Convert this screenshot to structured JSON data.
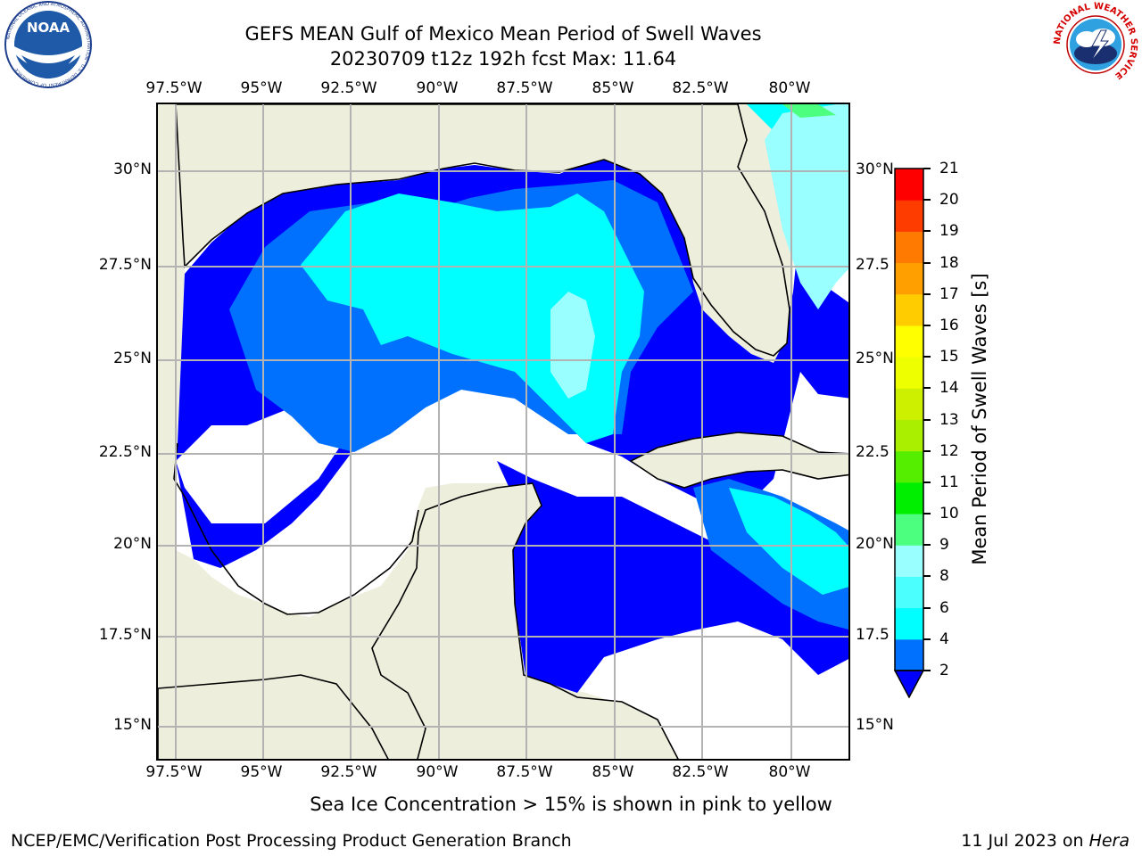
{
  "header": {
    "title_line1": "GEFS MEAN Gulf of Mexico Mean Period of Swell Waves",
    "title_line2": "20230709 t12z 192h fcst   Max: 11.64"
  },
  "logos": {
    "noaa_text": "NOAA",
    "noaa_ring_text": "NATIONAL OCEANIC AND ATMOSPHERIC ADMINISTRATION · U.S. DEPARTMENT OF COMMERCE",
    "nws_ring_text": "NATIONAL WEATHER SERVICE"
  },
  "map": {
    "lon_labels": [
      "97.5°W",
      "95°W",
      "92.5°W",
      "90°W",
      "87.5°W",
      "85°W",
      "82.5°W",
      "80°W"
    ],
    "lat_labels_left": [
      "30°N",
      "27.5°N",
      "25°N",
      "22.5°N",
      "20°N",
      "17.5°N",
      "15°N"
    ],
    "lat_labels_right": [
      "30°N",
      "27.5",
      "25°N",
      "22.5",
      "20°N",
      "17.5",
      "15°N"
    ],
    "colors": {
      "land": "#eeeedd",
      "no_data": "#ffffff",
      "coast": "#000000",
      "grid": "#b3b3b3"
    }
  },
  "colorbar": {
    "label": "Mean Period of Swell Waves [s]",
    "ticks": [
      "2",
      "4",
      "6",
      "8",
      "9",
      "10",
      "11",
      "12",
      "13",
      "14",
      "15",
      "16",
      "17",
      "18",
      "19",
      "20",
      "21"
    ],
    "colors": [
      "#0000ff",
      "#0070ff",
      "#00ffff",
      "#4cffff",
      "#99ffff",
      "#4cff7f",
      "#00ee00",
      "#55ee00",
      "#aaee00",
      "#ccf000",
      "#eeff00",
      "#ffff00",
      "#ffcc00",
      "#ffa000",
      "#ff7a00",
      "#ff3c00",
      "#ff0000"
    ],
    "extend_color": "#0000ff"
  },
  "notes": {
    "sea_ice": "Sea Ice Concentration > 15% is shown in pink to yellow"
  },
  "footer": {
    "left": "NCEP/EMC/Verification Post Processing Product Generation Branch",
    "date": "11 Jul 2023 on ",
    "host": "Hera"
  }
}
